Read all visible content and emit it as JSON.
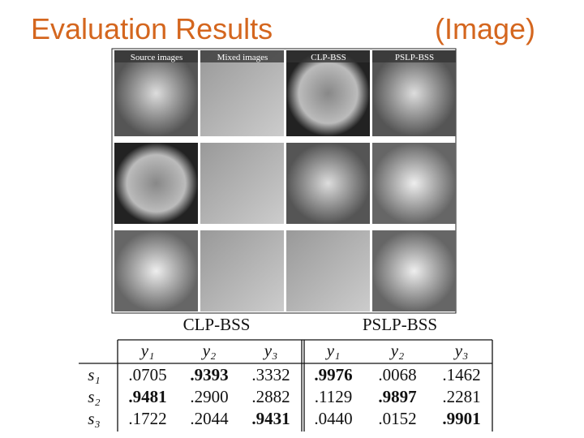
{
  "header": {
    "title": "Evaluation Results",
    "subtitle": "(Image)"
  },
  "figure": {
    "columns": [
      "Source images",
      "Mixed images",
      "CLP-BSS",
      "PSLP-BSS"
    ]
  },
  "table": {
    "groups": [
      "CLP-BSS",
      "PSLP-BSS"
    ],
    "columns": [
      "y₁",
      "y₂",
      "y₃",
      "y₁",
      "y₂",
      "y₃"
    ],
    "rows": [
      {
        "label": "s₁",
        "cells": [
          {
            "text": ".0705",
            "bold": false
          },
          {
            "text": ".9393",
            "bold": true
          },
          {
            "text": ".3332",
            "bold": false
          },
          {
            "text": ".9976",
            "bold": true
          },
          {
            "text": ".0068",
            "bold": false
          },
          {
            "text": ".1462",
            "bold": false
          }
        ]
      },
      {
        "label": "s₂",
        "cells": [
          {
            "text": ".9481",
            "bold": true
          },
          {
            "text": ".2900",
            "bold": false
          },
          {
            "text": ".2882",
            "bold": false
          },
          {
            "text": ".1129",
            "bold": false
          },
          {
            "text": ".9897",
            "bold": true
          },
          {
            "text": ".2281",
            "bold": false
          }
        ]
      },
      {
        "label": "s₃",
        "cells": [
          {
            "text": ".1722",
            "bold": false
          },
          {
            "text": ".2044",
            "bold": false
          },
          {
            "text": ".9431",
            "bold": true
          },
          {
            "text": ".0440",
            "bold": false
          },
          {
            "text": ".0152",
            "bold": false
          },
          {
            "text": ".9901",
            "bold": true
          }
        ]
      }
    ]
  }
}
